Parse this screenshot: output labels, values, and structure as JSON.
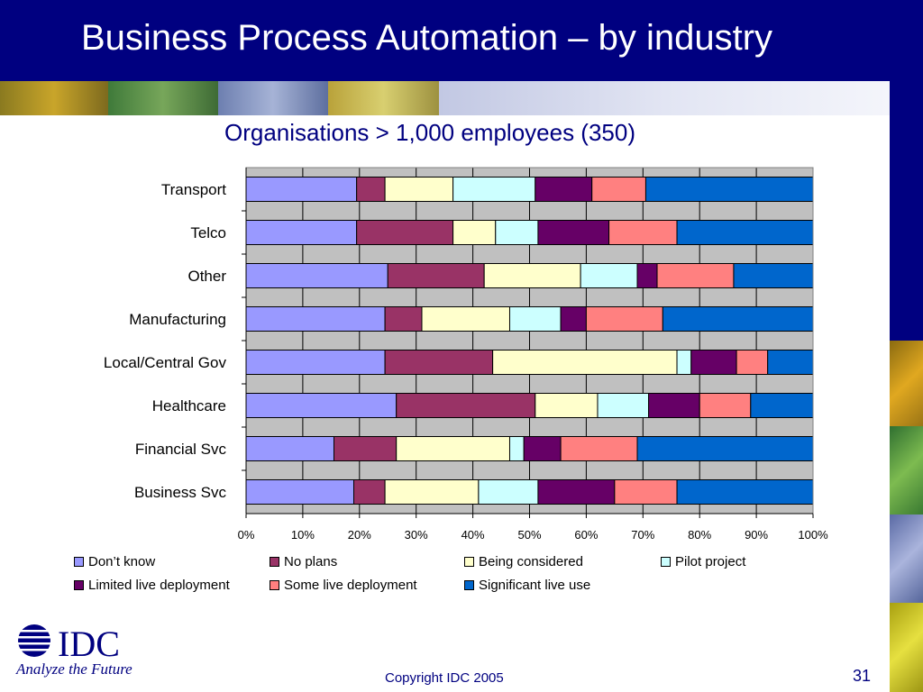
{
  "slide": {
    "title": "Business Process Automation – by industry",
    "footer": {
      "copyright": "Copyright IDC 2005",
      "page_number": "31"
    },
    "logo": {
      "wordmark": "IDC",
      "tagline": "Analyze the Future"
    },
    "colors": {
      "header_background": "#000080",
      "title_text": "#ffffff",
      "accent_text": "#000080",
      "plot_background": "#c0c0c0"
    }
  },
  "chart_data": {
    "type": "bar",
    "orientation": "horizontal",
    "stacked": true,
    "normalized_percent": true,
    "title": "Organisations > 1,000 employees (350)",
    "xlabel": "",
    "ylabel": "",
    "xlim": [
      0,
      100
    ],
    "x_ticks": [
      "0%",
      "10%",
      "20%",
      "30%",
      "40%",
      "50%",
      "60%",
      "70%",
      "80%",
      "90%",
      "100%"
    ],
    "grid": true,
    "legend_position": "bottom",
    "categories": [
      "Transport",
      "Telco",
      "Other",
      "Manufacturing",
      "Local/Central Gov",
      "Healthcare",
      "Financial Svc",
      "Business Svc"
    ],
    "series": [
      {
        "name": "Don’t know",
        "color": "#9999ff",
        "values": [
          19.5,
          19.5,
          25,
          24.5,
          24.5,
          26.5,
          15.5,
          19
        ]
      },
      {
        "name": "No plans",
        "color": "#993366",
        "values": [
          5,
          17,
          17,
          6.5,
          19,
          24.5,
          11,
          5.5
        ]
      },
      {
        "name": "Being considered",
        "color": "#ffffcc",
        "values": [
          12,
          7.5,
          17,
          15.5,
          32.5,
          11,
          20,
          16.5
        ]
      },
      {
        "name": "Pilot project",
        "color": "#ccffff",
        "values": [
          14.5,
          7.5,
          10,
          9,
          2.5,
          9,
          2.5,
          10.5
        ]
      },
      {
        "name": "Limited live deployment",
        "color": "#660066",
        "values": [
          10,
          12.5,
          3.5,
          4.5,
          8,
          9,
          6.5,
          13.5
        ]
      },
      {
        "name": "Some live deployment",
        "color": "#ff8080",
        "values": [
          9.5,
          12,
          13.5,
          13.5,
          5.5,
          9,
          13.5,
          11
        ]
      },
      {
        "name": "Significant live use",
        "color": "#0066cc",
        "values": [
          29.5,
          24,
          14,
          26.5,
          8,
          11,
          31,
          24
        ]
      }
    ]
  }
}
